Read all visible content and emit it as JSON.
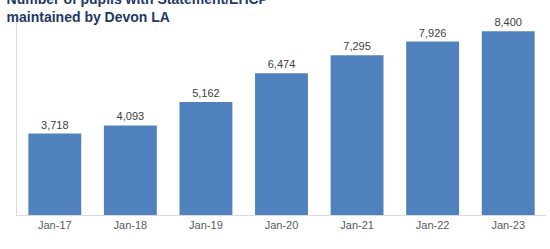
{
  "chart_data": {
    "type": "bar",
    "title": "Number of pupils with Statement/EHCP\nmaintained by Devon LA",
    "categories": [
      "Jan-17",
      "Jan-18",
      "Jan-19",
      "Jan-20",
      "Jan-21",
      "Jan-22",
      "Jan-23"
    ],
    "values": [
      3718,
      4093,
      5162,
      6474,
      7295,
      7926,
      8400
    ],
    "value_labels": [
      "3,718",
      "4,093",
      "5,162",
      "6,474",
      "7,295",
      "7,926",
      "8,400"
    ],
    "color": "#4f81bd",
    "ylim": [
      0,
      9000
    ],
    "yticks": [],
    "grid": false,
    "data_labels": true,
    "tick_labels": "x"
  }
}
